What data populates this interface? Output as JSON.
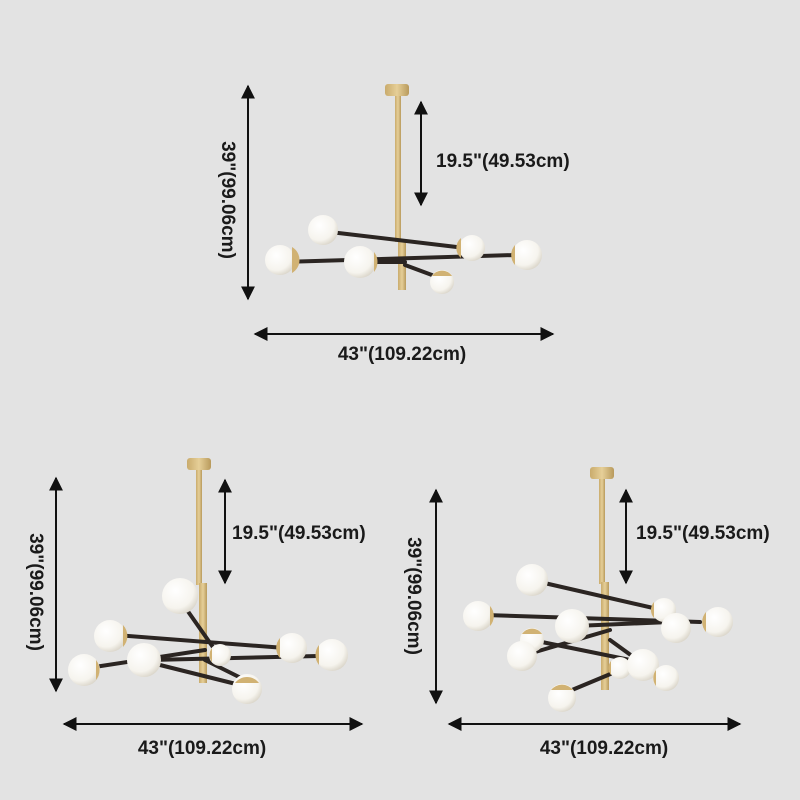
{
  "dimensions": {
    "height_label": "39\"(99.06cm)",
    "drop_label": "19.5\"(49.53cm)",
    "width_label": "43\"(109.22cm)"
  },
  "colors": {
    "background": "#e3e3e3",
    "brass": "#d6bc84",
    "arm": "#2b2522",
    "globe": "#fbfaf6",
    "dimension_line": "#111111"
  }
}
